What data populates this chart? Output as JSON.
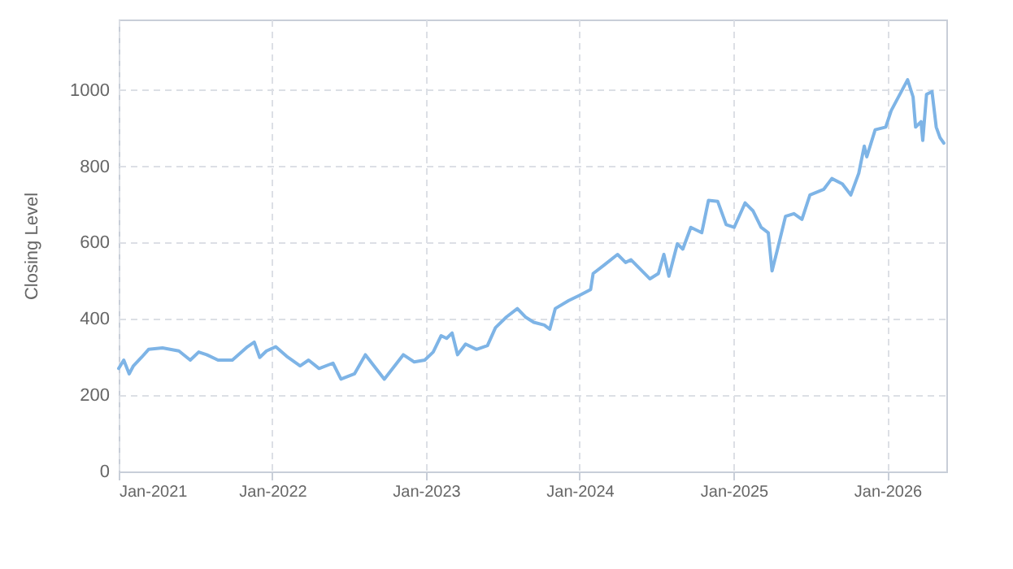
{
  "chart_data": {
    "type": "line",
    "ylabel": "Closing Level",
    "xlim": [
      "2021-01-01",
      "2026-05-21"
    ],
    "ylim": [
      0,
      1185
    ],
    "yticks": [
      0,
      200,
      400,
      600,
      800,
      1000
    ],
    "xticks": [
      {
        "value": "2021-01-01",
        "label": "Jan-2021"
      },
      {
        "value": "2022-01-01",
        "label": "Jan-2022"
      },
      {
        "value": "2023-01-01",
        "label": "Jan-2023"
      },
      {
        "value": "2024-01-01",
        "label": "Jan-2024"
      },
      {
        "value": "2025-01-01",
        "label": "Jan-2025"
      },
      {
        "value": "2026-01-01",
        "label": "Jan-2026"
      }
    ],
    "grid": true,
    "line_style": "solid",
    "marker": "none",
    "x": [
      "2021-01-01",
      "2021-01-13",
      "2021-01-26",
      "2021-02-05",
      "2021-02-24",
      "2021-03-13",
      "2021-04-15",
      "2021-05-24",
      "2021-06-20",
      "2021-07-10",
      "2021-07-29",
      "2021-08-25",
      "2021-09-28",
      "2021-11-03",
      "2021-11-19",
      "2021-12-02",
      "2021-12-18",
      "2022-01-09",
      "2022-02-04",
      "2022-03-08",
      "2022-03-28",
      "2022-04-22",
      "2022-05-25",
      "2022-06-13",
      "2022-07-15",
      "2022-08-10",
      "2022-09-04",
      "2022-09-24",
      "2022-11-08",
      "2022-12-04",
      "2022-12-29",
      "2023-01-18",
      "2023-02-06",
      "2023-02-19",
      "2023-03-04",
      "2023-03-17",
      "2023-04-05",
      "2023-05-01",
      "2023-05-27",
      "2023-06-15",
      "2023-07-11",
      "2023-08-06",
      "2023-08-25",
      "2023-09-14",
      "2023-10-09",
      "2023-10-22",
      "2023-11-04",
      "2023-12-06",
      "2024-01-01",
      "2024-01-27",
      "2024-02-02",
      "2024-02-28",
      "2024-03-31",
      "2024-04-19",
      "2024-05-02",
      "2024-06-16",
      "2024-07-06",
      "2024-07-19",
      "2024-07-31",
      "2024-08-20",
      "2024-09-02",
      "2024-09-21",
      "2024-10-17",
      "2024-11-02",
      "2024-11-24",
      "2024-12-14",
      "2025-01-02",
      "2025-01-28",
      "2025-02-16",
      "2025-03-07",
      "2025-03-24",
      "2025-04-02",
      "2025-04-15",
      "2025-05-04",
      "2025-05-24",
      "2025-06-12",
      "2025-07-01",
      "2025-08-03",
      "2025-08-22",
      "2025-09-16",
      "2025-10-06",
      "2025-10-25",
      "2025-11-07",
      "2025-11-13",
      "2025-12-03",
      "2025-12-28",
      "2026-01-10",
      "2026-02-18",
      "2026-03-03",
      "2026-03-09",
      "2026-03-22",
      "2026-03-26",
      "2026-04-04",
      "2026-04-17",
      "2026-04-27",
      "2026-05-06",
      "2026-05-15"
    ],
    "series": [
      {
        "color": "#7eb4e6",
        "values": [
          270,
          292,
          256,
          277,
          299,
          320,
          324,
          316,
          292,
          313,
          306,
          292,
          292,
          327,
          339,
          299,
          316,
          327,
          302,
          277,
          292,
          270,
          284,
          242,
          256,
          306,
          270,
          242,
          306,
          287,
          292,
          313,
          356,
          349,
          363,
          306,
          334,
          320,
          330,
          377,
          405,
          427,
          405,
          391,
          384,
          373,
          427,
          448,
          462,
          477,
          519,
          541,
          569,
          548,
          555,
          505,
          519,
          569,
          512,
          597,
          583,
          640,
          626,
          711,
          708,
          647,
          640,
          704,
          683,
          640,
          626,
          526,
          583,
          669,
          676,
          661,
          725,
          740,
          768,
          754,
          725,
          782,
          853,
          825,
          896,
          903,
          946,
          1027,
          982,
          903,
          917,
          868,
          989,
          996,
          903,
          875,
          861
        ]
      }
    ]
  }
}
